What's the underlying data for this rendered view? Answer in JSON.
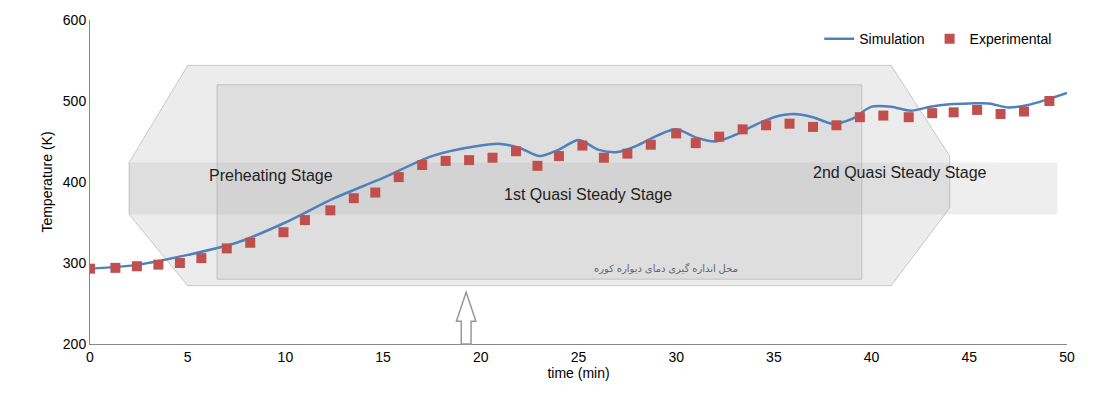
{
  "chart_data": {
    "type": "line",
    "x_label": "time (min)",
    "y_label": "Temperature (K)",
    "xlim": [
      0,
      50
    ],
    "xticks": [
      0,
      5,
      10,
      15,
      20,
      25,
      30,
      35,
      40,
      45,
      50
    ],
    "ylim": [
      200,
      600
    ],
    "yticks": [
      200,
      300,
      400,
      500,
      600
    ],
    "grid": false,
    "legend": "upper right",
    "annotations": [
      "Preheating Stage",
      "1st Quasi Steady Stage",
      "2nd Quasi Steady Stage",
      "محل اندازه گیری دمای دیواره کوره"
    ],
    "series": [
      {
        "name": "Simulation",
        "type": "line",
        "color": "#4F81BD",
        "line_style": "solid",
        "x": [
          0,
          2.5,
          5,
          7.5,
          10,
          12.5,
          15,
          17.5,
          20,
          21,
          22,
          23,
          24,
          25,
          26,
          27,
          28,
          29,
          30,
          31,
          32,
          33,
          34,
          35,
          36,
          37,
          38,
          39,
          40,
          41,
          42,
          43,
          44,
          45,
          46,
          47,
          48,
          49,
          50
        ],
        "values": [
          293,
          298,
          310,
          325,
          350,
          380,
          405,
          432,
          445,
          447,
          442,
          432,
          440,
          452,
          440,
          437,
          445,
          457,
          465,
          455,
          450,
          458,
          470,
          480,
          484,
          480,
          472,
          478,
          493,
          493,
          488,
          493,
          496,
          497,
          497,
          492,
          495,
          502,
          510
        ]
      },
      {
        "name": "Experimental",
        "type": "scatter",
        "color": "#C0504D",
        "marker": "square",
        "x": [
          0,
          1.3,
          2.4,
          3.5,
          4.6,
          5.7,
          7.0,
          8.2,
          9.9,
          11,
          12.3,
          13.5,
          14.6,
          15.8,
          17,
          18.2,
          19.4,
          20.6,
          21.8,
          22.9,
          24,
          25.2,
          26.3,
          27.5,
          28.7,
          30,
          31,
          32.2,
          33.4,
          34.6,
          35.8,
          37,
          38.2,
          39.4,
          40.6,
          41.9,
          43.1,
          44.2,
          45.4,
          46.6,
          47.8,
          49.1
        ],
        "values": [
          293,
          294,
          296,
          298,
          300,
          306,
          318,
          325,
          338,
          353,
          365,
          380,
          387,
          406,
          421,
          426,
          427,
          430,
          438,
          420,
          432,
          445,
          430,
          435,
          446,
          460,
          448,
          456,
          465,
          470,
          472,
          468,
          470,
          480,
          482,
          480,
          485,
          486,
          489,
          484,
          487,
          500
        ]
      }
    ]
  }
}
